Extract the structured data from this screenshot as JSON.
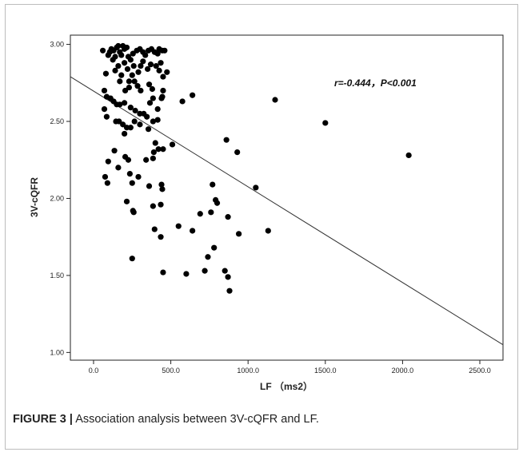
{
  "chart_data": {
    "type": "scatter",
    "xlabel": "LF （ms2）",
    "ylabel": "3V-cQFR",
    "xlim": [
      -150,
      2650
    ],
    "ylim": [
      0.95,
      3.06
    ],
    "x_ticks": [
      0,
      500,
      1000,
      1500,
      2000,
      2500
    ],
    "x_tick_labels": [
      "0.0",
      "500.0",
      "1000.0",
      "1500.0",
      "2000.0",
      "2500.0"
    ],
    "y_ticks": [
      1.0,
      1.5,
      2.0,
      2.5,
      3.0
    ],
    "y_tick_labels": [
      "1.00",
      "1.50",
      "2.00",
      "2.50",
      "3.00"
    ],
    "grid": false,
    "annotation": "r=-0.444，P<0.001",
    "fit_line": {
      "x": [
        -150,
        2650
      ],
      "y": [
        2.79,
        1.05
      ]
    },
    "points": [
      [
        60,
        2.96
      ],
      [
        80,
        2.81
      ],
      [
        95,
        2.93
      ],
      [
        105,
        2.95
      ],
      [
        115,
        2.97
      ],
      [
        125,
        2.9
      ],
      [
        130,
        2.96
      ],
      [
        140,
        2.92
      ],
      [
        150,
        2.98
      ],
      [
        160,
        2.99
      ],
      [
        170,
        2.95
      ],
      [
        180,
        2.93
      ],
      [
        190,
        2.99
      ],
      [
        200,
        2.97
      ],
      [
        215,
        2.98
      ],
      [
        225,
        2.92
      ],
      [
        240,
        2.9
      ],
      [
        255,
        2.94
      ],
      [
        280,
        2.96
      ],
      [
        300,
        2.97
      ],
      [
        320,
        2.95
      ],
      [
        335,
        2.93
      ],
      [
        355,
        2.96
      ],
      [
        375,
        2.97
      ],
      [
        395,
        2.95
      ],
      [
        415,
        2.94
      ],
      [
        425,
        2.97
      ],
      [
        445,
        2.96
      ],
      [
        460,
        2.96
      ],
      [
        475,
        2.82
      ],
      [
        140,
        2.83
      ],
      [
        160,
        2.86
      ],
      [
        180,
        2.8
      ],
      [
        200,
        2.88
      ],
      [
        220,
        2.84
      ],
      [
        230,
        2.76
      ],
      [
        250,
        2.8
      ],
      [
        260,
        2.86
      ],
      [
        290,
        2.82
      ],
      [
        305,
        2.86
      ],
      [
        320,
        2.89
      ],
      [
        350,
        2.84
      ],
      [
        370,
        2.87
      ],
      [
        405,
        2.86
      ],
      [
        425,
        2.83
      ],
      [
        435,
        2.88
      ],
      [
        450,
        2.79
      ],
      [
        170,
        2.76
      ],
      [
        205,
        2.7
      ],
      [
        230,
        2.72
      ],
      [
        265,
        2.76
      ],
      [
        285,
        2.73
      ],
      [
        305,
        2.7
      ],
      [
        360,
        2.74
      ],
      [
        380,
        2.71
      ],
      [
        450,
        2.7
      ],
      [
        445,
        2.66
      ],
      [
        640,
        2.67
      ],
      [
        70,
        2.7
      ],
      [
        85,
        2.66
      ],
      [
        110,
        2.65
      ],
      [
        130,
        2.63
      ],
      [
        150,
        2.61
      ],
      [
        170,
        2.61
      ],
      [
        200,
        2.62
      ],
      [
        240,
        2.59
      ],
      [
        270,
        2.57
      ],
      [
        300,
        2.55
      ],
      [
        325,
        2.55
      ],
      [
        345,
        2.53
      ],
      [
        365,
        2.62
      ],
      [
        385,
        2.65
      ],
      [
        415,
        2.58
      ],
      [
        440,
        2.65
      ],
      [
        575,
        2.63
      ],
      [
        70,
        2.58
      ],
      [
        85,
        2.53
      ],
      [
        145,
        2.5
      ],
      [
        165,
        2.5
      ],
      [
        190,
        2.48
      ],
      [
        215,
        2.46
      ],
      [
        240,
        2.46
      ],
      [
        265,
        2.5
      ],
      [
        300,
        2.48
      ],
      [
        355,
        2.45
      ],
      [
        385,
        2.5
      ],
      [
        415,
        2.51
      ],
      [
        200,
        2.42
      ],
      [
        400,
        2.36
      ],
      [
        390,
        2.3
      ],
      [
        420,
        2.32
      ],
      [
        450,
        2.32
      ],
      [
        510,
        2.35
      ],
      [
        860,
        2.38
      ],
      [
        930,
        2.3
      ],
      [
        1175,
        2.64
      ],
      [
        1500,
        2.49
      ],
      [
        2040,
        2.28
      ],
      [
        75,
        2.14
      ],
      [
        90,
        2.1
      ],
      [
        95,
        2.24
      ],
      [
        135,
        2.31
      ],
      [
        160,
        2.2
      ],
      [
        205,
        2.27
      ],
      [
        225,
        2.25
      ],
      [
        235,
        2.16
      ],
      [
        250,
        2.1
      ],
      [
        290,
        2.14
      ],
      [
        340,
        2.25
      ],
      [
        360,
        2.08
      ],
      [
        385,
        2.26
      ],
      [
        440,
        2.09
      ],
      [
        445,
        2.06
      ],
      [
        770,
        2.09
      ],
      [
        1050,
        2.07
      ],
      [
        215,
        1.98
      ],
      [
        255,
        1.92
      ],
      [
        260,
        1.91
      ],
      [
        385,
        1.95
      ],
      [
        435,
        1.96
      ],
      [
        690,
        1.9
      ],
      [
        760,
        1.91
      ],
      [
        790,
        1.99
      ],
      [
        800,
        1.97
      ],
      [
        870,
        1.88
      ],
      [
        395,
        1.8
      ],
      [
        435,
        1.75
      ],
      [
        550,
        1.82
      ],
      [
        640,
        1.79
      ],
      [
        940,
        1.77
      ],
      [
        1130,
        1.79
      ],
      [
        250,
        1.61
      ],
      [
        450,
        1.52
      ],
      [
        600,
        1.51
      ],
      [
        720,
        1.53
      ],
      [
        740,
        1.62
      ],
      [
        780,
        1.68
      ],
      [
        850,
        1.53
      ],
      [
        870,
        1.49
      ],
      [
        880,
        1.4
      ]
    ]
  },
  "caption": {
    "label": "FIGURE 3 |",
    "text": " Association analysis between 3V-cQFR and LF."
  }
}
